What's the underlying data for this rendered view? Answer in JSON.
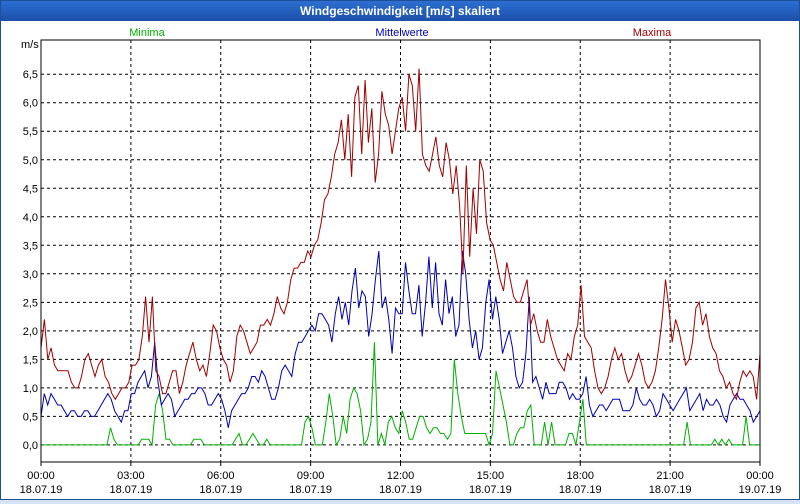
{
  "window": {
    "title": "Windgeschwindigkeit [m/s] skaliert"
  },
  "colors": {
    "minima": "#00b000",
    "mittelwerte": "#0000b0",
    "maxima": "#a00000",
    "grid": "#000000"
  },
  "chart_data": {
    "type": "line",
    "title": "Windgeschwindigkeit [m/s] skaliert",
    "ylabel": "m/s",
    "ylim": [
      -0.3,
      7.1
    ],
    "y_ticks": [
      "0,0",
      "0,5",
      "1,0",
      "1,5",
      "2,0",
      "2,5",
      "3,0",
      "3,5",
      "4,0",
      "4,5",
      "5,0",
      "5,5",
      "6,0",
      "6,5"
    ],
    "y_tick_values": [
      0,
      0.5,
      1,
      1.5,
      2,
      2.5,
      3,
      3.5,
      4,
      4.5,
      5,
      5.5,
      6,
      6.5
    ],
    "x_ticks": [
      {
        "time": "00:00",
        "date": "18.07.19"
      },
      {
        "time": "03:00",
        "date": "18.07.19"
      },
      {
        "time": "06:00",
        "date": "18.07.19"
      },
      {
        "time": "09:00",
        "date": "18.07.19"
      },
      {
        "time": "12:00",
        "date": "18.07.19"
      },
      {
        "time": "15:00",
        "date": "18.07.19"
      },
      {
        "time": "18:00",
        "date": "18.07.19"
      },
      {
        "time": "21:00",
        "date": "18.07.19"
      },
      {
        "time": "00:00",
        "date": "19.07.19"
      }
    ],
    "x_range_hours": [
      0,
      24
    ],
    "grid": true,
    "legend": "top",
    "series": [
      {
        "name": "Minima",
        "key": "minima",
        "values": [
          0,
          0,
          0,
          0,
          0,
          0,
          0,
          0,
          0,
          0,
          0,
          0,
          0,
          0,
          0,
          0,
          0,
          0,
          0,
          0,
          0.3,
          0.1,
          0,
          0,
          0,
          0,
          0,
          0,
          0,
          0.1,
          0.1,
          0.1,
          0,
          0.7,
          0.9,
          0.6,
          0.1,
          0.1,
          0,
          0,
          0,
          0,
          0,
          0,
          0.1,
          0.1,
          0.1,
          0,
          0,
          0,
          0,
          0,
          0,
          0,
          0,
          0,
          0.1,
          0.2,
          0,
          0,
          0.1,
          0.2,
          0.1,
          0,
          0,
          0.1,
          0,
          0,
          0,
          0,
          0,
          0,
          0,
          0,
          0,
          0,
          0.4,
          0.5,
          0.3,
          0,
          0,
          0,
          0.4,
          0.9,
          0.5,
          0,
          0.1,
          0.5,
          0.2,
          0.8,
          1.0,
          0.9,
          0.6,
          0,
          0.1,
          0.4,
          1.8,
          0,
          0.2,
          0,
          0.4,
          0.5,
          0.3,
          0.2,
          0.6,
          0.4,
          0.1,
          0.1,
          0.3,
          0.5,
          0.5,
          0.3,
          0.2,
          0.3,
          0.3,
          0.2,
          0.2,
          0.1,
          0.2,
          1.5,
          0.9,
          0.5,
          0.2,
          0.2,
          0.2,
          0.2,
          0.2,
          0.2,
          0.2,
          0,
          0.2,
          1.3,
          1.0,
          0.7,
          0.4,
          0,
          0,
          0.2,
          0.3,
          0.3,
          0.6,
          0.7,
          0,
          0,
          0,
          0.4,
          0,
          0.4,
          0,
          0,
          0,
          0,
          0.2,
          0.2,
          0,
          0.4,
          0.8,
          0,
          0,
          0,
          0,
          0,
          0,
          0,
          0,
          0,
          0,
          0,
          0,
          0,
          0,
          0,
          0,
          0,
          0,
          0,
          0,
          0,
          0,
          0,
          0,
          0,
          0,
          0,
          0,
          0,
          0.4,
          0,
          0,
          0,
          0,
          0,
          0,
          0,
          0.1,
          0,
          0.1,
          0,
          0.1,
          0,
          0,
          0,
          0,
          0.5,
          0,
          0,
          0,
          0
        ]
      },
      {
        "name": "Mittelwerte",
        "key": "mittelwerte",
        "values": [
          0.5,
          0.9,
          0.7,
          0.9,
          0.8,
          0.7,
          0.7,
          0.6,
          0.5,
          0.6,
          0.6,
          0.5,
          0.5,
          0.6,
          0.6,
          0.5,
          0.5,
          0.6,
          0.7,
          0.8,
          0.9,
          0.8,
          0.6,
          0.5,
          0.4,
          0.6,
          0.6,
          0.9,
          0.9,
          1.1,
          1.2,
          1.3,
          1.0,
          1.2,
          1.8,
          1.1,
          0.7,
          0.8,
          0.9,
          0.8,
          0.5,
          0.6,
          0.7,
          0.8,
          0.8,
          0.9,
          0.9,
          1.0,
          1.0,
          0.9,
          0.7,
          0.7,
          0.8,
          0.9,
          0.8,
          0.6,
          0.3,
          0.6,
          0.7,
          0.8,
          0.9,
          0.9,
          1.0,
          1.2,
          1.2,
          1.1,
          1.3,
          1.2,
          1.0,
          0.8,
          0.8,
          1.0,
          1.3,
          1.4,
          1.3,
          1.2,
          1.6,
          1.8,
          1.8,
          1.9,
          2.0,
          2.1,
          2.0,
          2.3,
          2.3,
          2.2,
          2.1,
          1.8,
          2.3,
          2.6,
          2.2,
          2.5,
          2.1,
          2.7,
          3.1,
          2.4,
          2.7,
          2.6,
          1.9,
          2.3,
          2.9,
          3.4,
          2.4,
          2.6,
          2.2,
          1.6,
          2.4,
          2.3,
          2.3,
          3.2,
          2.7,
          2.3,
          2.3,
          2.8,
          1.9,
          2.5,
          3.3,
          2.4,
          3.2,
          2.3,
          2.1,
          2.9,
          2.3,
          2.6,
          1.9,
          2.1,
          3.4,
          3.0,
          2.2,
          1.7,
          2.0,
          1.5,
          1.7,
          2.5,
          2.9,
          2.2,
          2.6,
          2.2,
          1.6,
          1.8,
          2.0,
          1.7,
          1.2,
          1.0,
          1.1,
          1.6,
          2.6,
          1.1,
          1.2,
          1.0,
          0.8,
          1.1,
          0.9,
          0.9,
          0.9,
          1.1,
          1.1,
          1.0,
          0.8,
          0.9,
          0.8,
          0.8,
          0.9,
          1.2,
          0.7,
          0.5,
          0.6,
          0.7,
          0.7,
          0.6,
          0.7,
          0.8,
          0.8,
          0.8,
          0.6,
          0.6,
          0.6,
          0.7,
          1.0,
          0.8,
          0.7,
          0.7,
          0.8,
          0.7,
          0.5,
          0.6,
          0.9,
          0.8,
          0.7,
          0.6,
          0.7,
          0.8,
          0.9,
          1.0,
          0.6,
          0.7,
          0.8,
          0.9,
          0.6,
          0.8,
          0.7,
          0.7,
          0.8,
          0.7,
          0.5,
          0.4,
          0.7,
          0.8,
          0.9,
          0.8,
          0.8,
          0.7,
          0.6,
          0.4,
          0.5,
          0.6
        ]
      },
      {
        "name": "Maxima",
        "key": "maxima",
        "values": [
          1.7,
          2.2,
          1.5,
          1.7,
          1.4,
          1.3,
          1.3,
          1.3,
          1.3,
          1.1,
          1.0,
          1.0,
          1.2,
          1.5,
          1.6,
          1.4,
          1.2,
          1.4,
          1.5,
          1.2,
          1.1,
          0.9,
          0.8,
          0.9,
          1.0,
          1.0,
          1.1,
          1.4,
          1.4,
          1.5,
          1.9,
          2.6,
          1.8,
          2.6,
          1.3,
          1.2,
          0.9,
          0.9,
          1.1,
          1.3,
          1.3,
          0.9,
          1.1,
          1.4,
          1.6,
          1.8,
          1.5,
          1.3,
          1.4,
          1.2,
          1.6,
          2.1,
          2.0,
          1.7,
          1.5,
          1.4,
          1.1,
          1.3,
          1.9,
          2.1,
          2.0,
          1.8,
          1.6,
          1.7,
          1.8,
          2.1,
          2.1,
          2.2,
          2.1,
          2.3,
          2.6,
          2.4,
          2.3,
          2.5,
          2.9,
          3.1,
          3.1,
          3.2,
          3.2,
          3.4,
          3.3,
          3.5,
          3.6,
          3.9,
          4.3,
          4.4,
          4.7,
          5.1,
          5.3,
          5.7,
          5.0,
          5.8,
          4.7,
          6.1,
          6.3,
          5.1,
          6.4,
          5.3,
          5.9,
          4.6,
          5.1,
          6.2,
          5.8,
          5.6,
          5.1,
          5.5,
          5.9,
          6.1,
          5.5,
          6.5,
          6.3,
          5.5,
          6.6,
          5.1,
          4.9,
          4.8,
          5.1,
          5.4,
          4.9,
          4.7,
          5.3,
          5.0,
          4.4,
          4.9,
          4.2,
          3.0,
          4.9,
          3.3,
          4.5,
          3.7,
          5.0,
          4.8,
          3.9,
          3.6,
          3.5,
          3.2,
          2.9,
          2.7,
          3.2,
          2.9,
          2.6,
          2.5,
          2.5,
          2.7,
          2.9,
          2.1,
          2.3,
          2.0,
          1.8,
          1.8,
          2.2,
          1.9,
          1.7,
          1.5,
          1.4,
          1.3,
          1.6,
          1.5,
          1.9,
          2.1,
          2.8,
          1.9,
          1.8,
          1.7,
          1.3,
          1.0,
          0.9,
          1.0,
          1.2,
          1.5,
          1.7,
          1.5,
          1.6,
          1.3,
          1.1,
          1.2,
          1.4,
          1.6,
          1.4,
          1.1,
          1.0,
          1.1,
          1.3,
          1.7,
          2.2,
          2.9,
          2.4,
          1.8,
          2.2,
          2.0,
          1.7,
          1.4,
          1.5,
          1.8,
          2.4,
          2.5,
          2.1,
          2.3,
          1.9,
          1.7,
          1.6,
          1.3,
          1.2,
          1.0,
          1.1,
          0.9,
          0.8,
          1.1,
          1.3,
          1.2,
          1.3,
          1.2,
          0.8,
          1.6
        ]
      }
    ]
  }
}
